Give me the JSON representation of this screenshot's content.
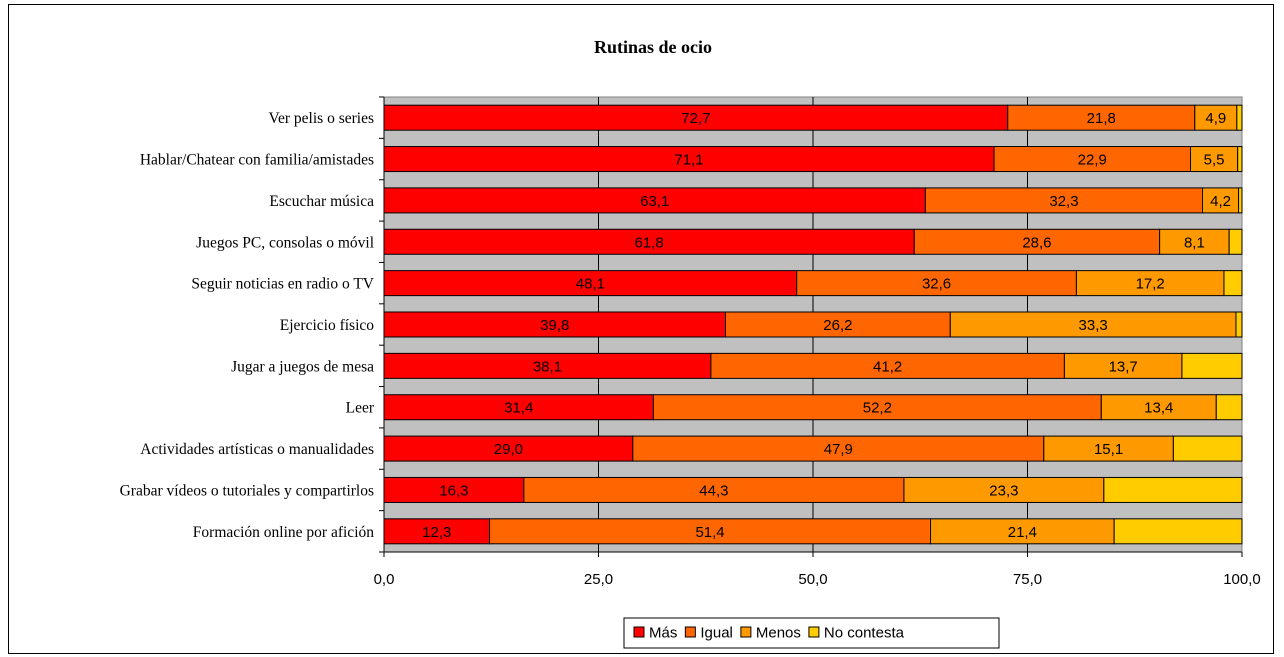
{
  "chart_data": {
    "type": "bar",
    "orientation": "horizontal",
    "stacked": true,
    "title": "Rutinas de ocio",
    "categories": [
      "Ver pelis o series",
      "Hablar/Chatear con familia/amistades",
      "Escuchar música",
      "Juegos PC, consolas o móvil",
      "Seguir noticias en radio o TV",
      "Ejercicio físico",
      "Jugar a juegos de mesa",
      "Leer",
      "Actividades artísticas o manualidades",
      "Grabar vídeos o tutoriales y compartirlos",
      "Formación online por afición"
    ],
    "series": [
      {
        "name": "Más",
        "color": "#FF0000",
        "values": [
          72.7,
          71.1,
          63.1,
          61.8,
          48.1,
          39.8,
          38.1,
          31.4,
          29.0,
          16.3,
          12.3
        ],
        "labels": [
          "72,7",
          "71,1",
          "63,1",
          "61,8",
          "48,1",
          "39,8",
          "38,1",
          "31,4",
          "29,0",
          "16,3",
          "12,3"
        ]
      },
      {
        "name": "Igual",
        "color": "#FF6600",
        "values": [
          21.8,
          22.9,
          32.3,
          28.6,
          32.6,
          26.2,
          41.2,
          52.2,
          47.9,
          44.3,
          51.4
        ],
        "labels": [
          "21,8",
          "22,9",
          "32,3",
          "28,6",
          "32,6",
          "26,2",
          "41,2",
          "52,2",
          "47,9",
          "44,3",
          "51,4"
        ]
      },
      {
        "name": "Menos",
        "color": "#FF9900",
        "values": [
          4.9,
          5.5,
          4.2,
          8.1,
          17.2,
          33.3,
          13.7,
          13.4,
          15.1,
          23.3,
          21.4
        ],
        "labels": [
          "4,9",
          "5,5",
          "4,2",
          "8,1",
          "17,2",
          "33,3",
          "13,7",
          "13,4",
          "15,1",
          "23,3",
          "21,4"
        ]
      },
      {
        "name": "No contesta",
        "color": "#FFCC00",
        "values": [
          0.6,
          0.5,
          0.4,
          1.5,
          2.1,
          0.7,
          7.0,
          3.0,
          8.0,
          16.1,
          14.9
        ],
        "labels": [
          "",
          "",
          "",
          "",
          "",
          "",
          "",
          "",
          "",
          "",
          ""
        ]
      }
    ],
    "xlim": [
      0,
      100
    ],
    "xticks": [
      "0,0",
      "25,0",
      "50,0",
      "75,0",
      "100,0"
    ],
    "xtick_values": [
      0,
      25,
      50,
      75,
      100
    ],
    "grid": true,
    "plot_background": "#C0C0C0",
    "legend_position": "bottom"
  }
}
